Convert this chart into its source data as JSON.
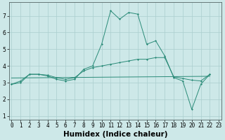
{
  "xlabel": "Humidex (Indice chaleur)",
  "x": [
    0,
    1,
    2,
    3,
    4,
    5,
    6,
    7,
    8,
    9,
    10,
    11,
    12,
    13,
    14,
    15,
    16,
    17,
    18,
    19,
    20,
    21,
    22,
    23
  ],
  "line1": [
    2.9,
    3.1,
    3.5,
    3.5,
    3.4,
    3.2,
    3.1,
    3.2,
    3.8,
    4.0,
    5.3,
    7.3,
    6.8,
    7.2,
    7.1,
    5.3,
    5.5,
    4.6,
    3.3,
    3.1,
    1.4,
    2.9,
    3.5,
    null
  ],
  "line2": [
    2.9,
    3.0,
    3.5,
    3.5,
    3.45,
    3.3,
    3.2,
    3.3,
    3.7,
    3.9,
    4.0,
    4.1,
    4.2,
    4.3,
    4.4,
    4.4,
    4.5,
    4.5,
    3.35,
    3.25,
    3.15,
    3.1,
    3.5,
    null
  ],
  "line3_x": [
    0,
    22
  ],
  "line3_y": [
    3.28,
    3.38
  ],
  "ylim": [
    0.8,
    7.8
  ],
  "xlim": [
    -0.3,
    23.3
  ],
  "yticks": [
    1,
    2,
    3,
    4,
    5,
    6,
    7
  ],
  "color": "#2a8b78",
  "bg_color": "#cde8e8",
  "grid_color": "#aacece",
  "tick_fontsize": 5.5,
  "label_fontsize": 7.5
}
